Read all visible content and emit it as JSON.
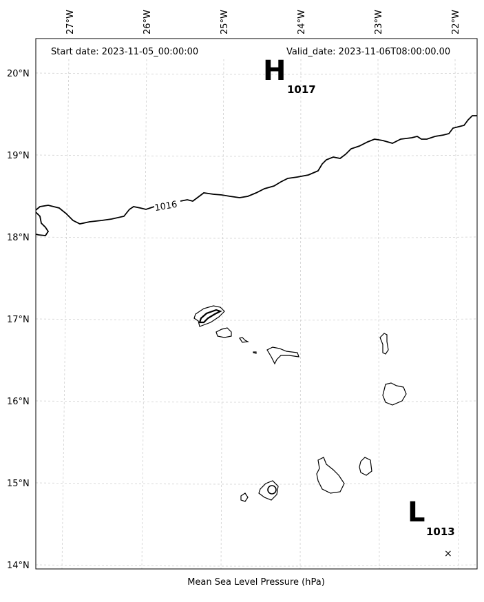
{
  "header": {
    "start_date": "Start date: 2023-11-05_00:00:00",
    "valid_date": "Valid_date: 2023-11-06T08:00:00.00"
  },
  "footer": {
    "xlabel": "Mean Sea Level Pressure (hPa)"
  },
  "axes": {
    "lon_labels": [
      "27°W",
      "26°W",
      "25°W",
      "24°W",
      "23°W",
      "22°W"
    ],
    "lat_labels": [
      "20°N",
      "19°N",
      "18°N",
      "17°N",
      "16°N",
      "15°N",
      "14°N"
    ]
  },
  "pressure_centers": {
    "high": {
      "letter": "H",
      "value": "1017"
    },
    "low": {
      "letter": "L",
      "value": "1013",
      "marker": "×"
    }
  },
  "isobars": [
    {
      "label": "1016"
    }
  ]
}
